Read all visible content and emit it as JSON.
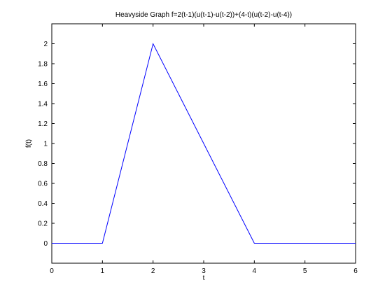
{
  "chart_data": {
    "type": "line",
    "title": "Heavyside Graph f=2(t-1)(u(t-1)-u(t-2))+(4-t)(u(t-2)-u(t-4))",
    "xlabel": "t",
    "ylabel": "f(t)",
    "xlim": [
      0,
      6
    ],
    "ylim": [
      -0.2,
      2.2
    ],
    "xticks": [
      "0",
      "1",
      "2",
      "3",
      "4",
      "5",
      "6"
    ],
    "yticks": [
      "0",
      "0.2",
      "0.4",
      "0.6",
      "0.8",
      "1",
      "1.2",
      "1.4",
      "1.6",
      "1.8",
      "2"
    ],
    "grid": false,
    "series": [
      {
        "color": "#0000ff",
        "x": [
          0,
          1,
          2,
          4,
          6
        ],
        "y": [
          0,
          0,
          2,
          0,
          0
        ]
      }
    ]
  }
}
